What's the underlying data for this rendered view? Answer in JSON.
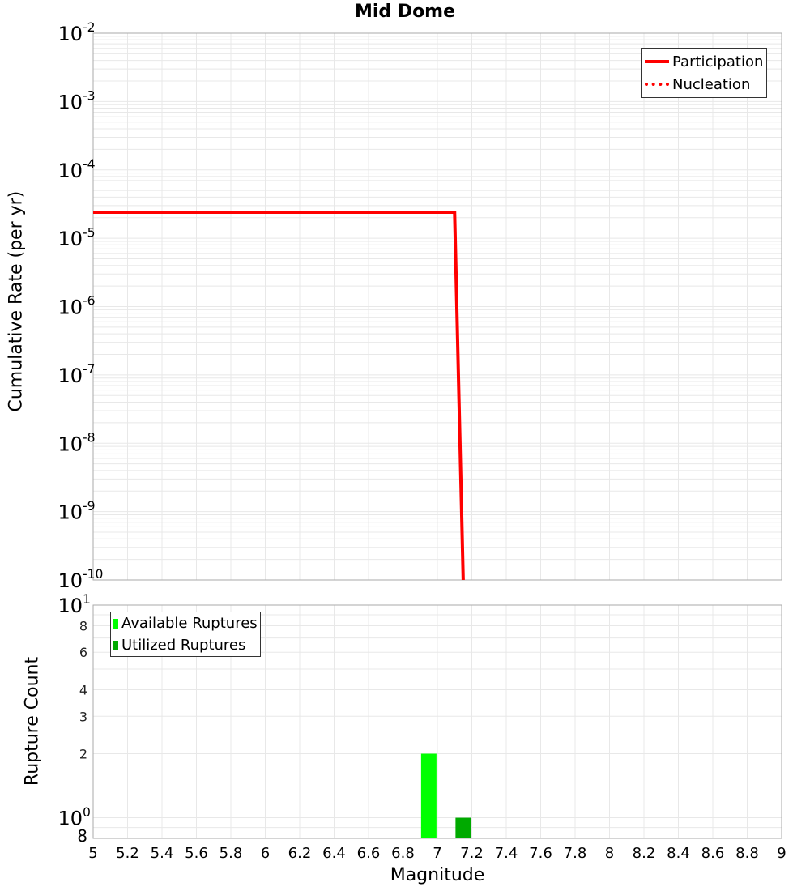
{
  "title": "Mid Dome",
  "top_plot": {
    "ylabel": "Cumulative Rate (per yr)",
    "yticks": [
      "10^-2",
      "10^-3",
      "10^-4",
      "10^-5",
      "10^-6",
      "10^-7",
      "10^-8",
      "10^-9",
      "10^-10"
    ],
    "legend": [
      {
        "label": "Participation",
        "style": "solid",
        "color": "#ff0000"
      },
      {
        "label": "Nucleation",
        "style": "dotted",
        "color": "#ff0000"
      }
    ]
  },
  "bottom_plot": {
    "ylabel": "Rupture Count",
    "yticks": [
      "10^1",
      "8",
      "6",
      "4",
      "3",
      "2",
      "10^0",
      "8"
    ],
    "legend": [
      {
        "label": "Available Ruptures",
        "color": "#00ff00"
      },
      {
        "label": "Utilized Ruptures",
        "color": "#00aa00"
      }
    ]
  },
  "xlabel": "Magnitude",
  "xticks": [
    "5",
    "5.2",
    "5.4",
    "5.6",
    "5.8",
    "6",
    "6.2",
    "6.4",
    "6.6",
    "6.8",
    "7",
    "7.2",
    "7.4",
    "7.6",
    "7.8",
    "8",
    "8.2",
    "8.4",
    "8.6",
    "8.8",
    "9"
  ],
  "chart_data": [
    {
      "type": "line",
      "title": "Mid Dome",
      "xlabel": "Magnitude",
      "ylabel": "Cumulative Rate (per yr)",
      "yscale": "log",
      "xlim": [
        5,
        9
      ],
      "ylim": [
        1e-10,
        0.01
      ],
      "grid": true,
      "legend_position": "upper right",
      "series": [
        {
          "name": "Participation",
          "color": "#ff0000",
          "style": "solid",
          "x": [
            5.0,
            7.1,
            7.15
          ],
          "y": [
            2.4e-05,
            2.4e-05,
            1e-10
          ]
        },
        {
          "name": "Nucleation",
          "color": "#ff0000",
          "style": "dotted",
          "x": [
            5.0,
            7.1,
            7.15
          ],
          "y": [
            2.4e-05,
            2.4e-05,
            1e-10
          ]
        }
      ]
    },
    {
      "type": "bar",
      "xlabel": "Magnitude",
      "ylabel": "Rupture Count",
      "yscale": "log",
      "xlim": [
        5,
        9
      ],
      "ylim": [
        0.8,
        10
      ],
      "grid": true,
      "legend_position": "upper left",
      "series": [
        {
          "name": "Available Ruptures",
          "color": "#00ff00",
          "x": [
            6.95
          ],
          "values": [
            2
          ]
        },
        {
          "name": "Utilized Ruptures",
          "color": "#00aa00",
          "x": [
            7.15
          ],
          "values": [
            1
          ]
        }
      ]
    }
  ]
}
